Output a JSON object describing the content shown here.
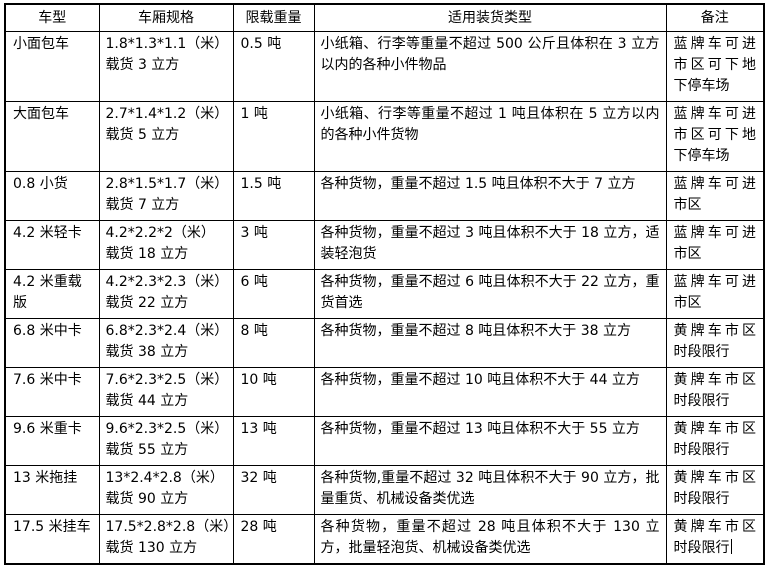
{
  "table": {
    "headers": [
      "车型",
      "车厢规格",
      "限载重量",
      "适用装货类型",
      "备注"
    ],
    "rows": [
      {
        "type": "小面包车",
        "spec": [
          "1.8*1.3*1.1（米）",
          "载货 3 立方"
        ],
        "limit": "0.5 吨",
        "cargo": "小纸箱、行李等重量不超过 500 公斤且体积在 3 立方以内的各种小件物品",
        "note": "蓝牌车可进市区可下地下停车场",
        "tall": true,
        "caret": false
      },
      {
        "type": "大面包车",
        "spec": [
          "2.7*1.4*1.2（米）",
          "载货 5 立方"
        ],
        "limit": "1 吨",
        "cargo": "小纸箱、行李等重量不超过 1 吨且体积在 5 立方以内的各种小件货物",
        "note": "蓝牌车可进市区可下地下停车场",
        "tall": true,
        "caret": false
      },
      {
        "type": "0.8 小货",
        "spec": [
          "2.8*1.5*1.7（米）",
          "载货 7 立方"
        ],
        "limit": "1.5 吨",
        "cargo": "各种货物，重量不超过 1.5 吨且体积不大于 7 立方",
        "note": "蓝牌车可进市区",
        "tall": false,
        "caret": false
      },
      {
        "type": "4.2 米轻卡",
        "spec": [
          "4.2*2.2*2（米）",
          "载货 18 立方"
        ],
        "limit": "3 吨",
        "cargo": "各种货物，重量不超过 3 吨且体积不大于 18 立方，适装轻泡货",
        "note": "蓝牌车可进市区",
        "tall": false,
        "caret": false
      },
      {
        "type": "4.2 米重载版",
        "spec": [
          "4.2*2.3*2.3（米）",
          "载货 22 立方"
        ],
        "limit": "6 吨",
        "cargo": "各种货物，重量不超过 6 吨且体积不大于 22 立方，重货首选",
        "note": "蓝牌车可进市区",
        "tall": false,
        "caret": false
      },
      {
        "type": "6.8 米中卡",
        "spec": [
          "6.8*2.3*2.4（米）",
          "载货 38 立方"
        ],
        "limit": "8 吨",
        "cargo": "各种货物，重量不超过 8 吨且体积不大于 38 立方",
        "note": "黄牌车市区时段限行",
        "tall": false,
        "caret": false
      },
      {
        "type": "7.6 米中卡",
        "spec": [
          "7.6*2.3*2.5（米）",
          "载货 44 立方"
        ],
        "limit": "10 吨",
        "cargo": "各种货物，重量不超过 10 吨且体积不大于 44 立方",
        "note": "黄牌车市区时段限行",
        "tall": false,
        "caret": false
      },
      {
        "type": "9.6 米重卡",
        "spec": [
          "9.6*2.3*2.5（米）",
          "载货 55 立方"
        ],
        "limit": "13 吨",
        "cargo": "各种货物，重量不超过 13 吨且体积不大于 55 立方",
        "note": "黄牌车市区时段限行",
        "tall": false,
        "caret": false
      },
      {
        "type": "13 米拖挂",
        "spec": [
          "13*2.4*2.8（米）",
          "载货 90 立方"
        ],
        "limit": "32 吨",
        "cargo": "各种货物,重量不超过 32 吨且体积不大于 90 立方，批量重货、机械设备类优选",
        "note": "黄牌车市区时段限行",
        "tall": false,
        "caret": false
      },
      {
        "type": "17.5 米挂车",
        "spec": [
          "17.5*2.8*2.8（米）",
          "载货 130 立方"
        ],
        "limit": "28 吨",
        "cargo": "各种货物，重量不超过 28 吨且体积不大于 130 立方，批量轻泡货、机械设备类优选",
        "note": "黄牌车市区时段限行",
        "tall": false,
        "caret": true
      }
    ]
  },
  "colors": {
    "border": "#000000",
    "text": "#000000",
    "background": "#ffffff"
  }
}
